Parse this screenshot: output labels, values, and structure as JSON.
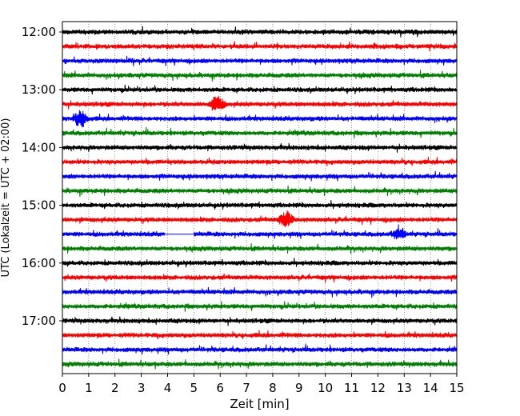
{
  "chart_data": {
    "type": "line",
    "subtype": "helicorder",
    "xlabel": "Zeit  [min]",
    "ylabel": "UTC (Lokalzeit = UTC + 02:00)",
    "xlim": [
      0,
      15
    ],
    "x_ticks": [
      0,
      1,
      2,
      3,
      4,
      5,
      6,
      7,
      8,
      9,
      10,
      11,
      12,
      13,
      14,
      15
    ],
    "y_ticks": [
      "12:00",
      "13:00",
      "14:00",
      "15:00",
      "16:00",
      "17:00"
    ],
    "grid": "vertical dotted lines at each minute",
    "trace_interval_minutes": 15,
    "trace_color_cycle": [
      "#000000",
      "#ff0000",
      "#0000ff",
      "#008000"
    ],
    "traces": [
      {
        "start": "12:00",
        "color": "#000000"
      },
      {
        "start": "12:15",
        "color": "#ff0000"
      },
      {
        "start": "12:30",
        "color": "#0000ff"
      },
      {
        "start": "12:45",
        "color": "#008000"
      },
      {
        "start": "13:00",
        "color": "#000000"
      },
      {
        "start": "13:15",
        "color": "#ff0000"
      },
      {
        "start": "13:30",
        "color": "#0000ff"
      },
      {
        "start": "13:45",
        "color": "#008000"
      },
      {
        "start": "14:00",
        "color": "#000000"
      },
      {
        "start": "14:15",
        "color": "#ff0000"
      },
      {
        "start": "14:30",
        "color": "#0000ff"
      },
      {
        "start": "14:45",
        "color": "#008000"
      },
      {
        "start": "15:00",
        "color": "#000000"
      },
      {
        "start": "15:15",
        "color": "#ff0000"
      },
      {
        "start": "15:30",
        "color": "#0000ff"
      },
      {
        "start": "15:45",
        "color": "#008000"
      },
      {
        "start": "16:00",
        "color": "#000000"
      },
      {
        "start": "16:15",
        "color": "#ff0000"
      },
      {
        "start": "16:30",
        "color": "#0000ff"
      },
      {
        "start": "16:45",
        "color": "#008000"
      },
      {
        "start": "17:00",
        "color": "#000000"
      },
      {
        "start": "17:15",
        "color": "#ff0000"
      },
      {
        "start": "17:30",
        "color": "#0000ff"
      },
      {
        "start": "17:45",
        "color": "#008000"
      }
    ],
    "events": [
      {
        "trace": "13:15",
        "minute": 5.9,
        "amplitude": "large"
      },
      {
        "trace": "13:30",
        "minute": 0.7,
        "amplitude": "large"
      },
      {
        "trace": "15:15",
        "minute": 8.5,
        "amplitude": "large"
      },
      {
        "trace": "15:30",
        "minute": 12.8,
        "amplitude": "medium"
      }
    ],
    "gaps": [
      {
        "trace": "15:30",
        "from_minute": 3.9,
        "to_minute": 5.0
      }
    ]
  }
}
